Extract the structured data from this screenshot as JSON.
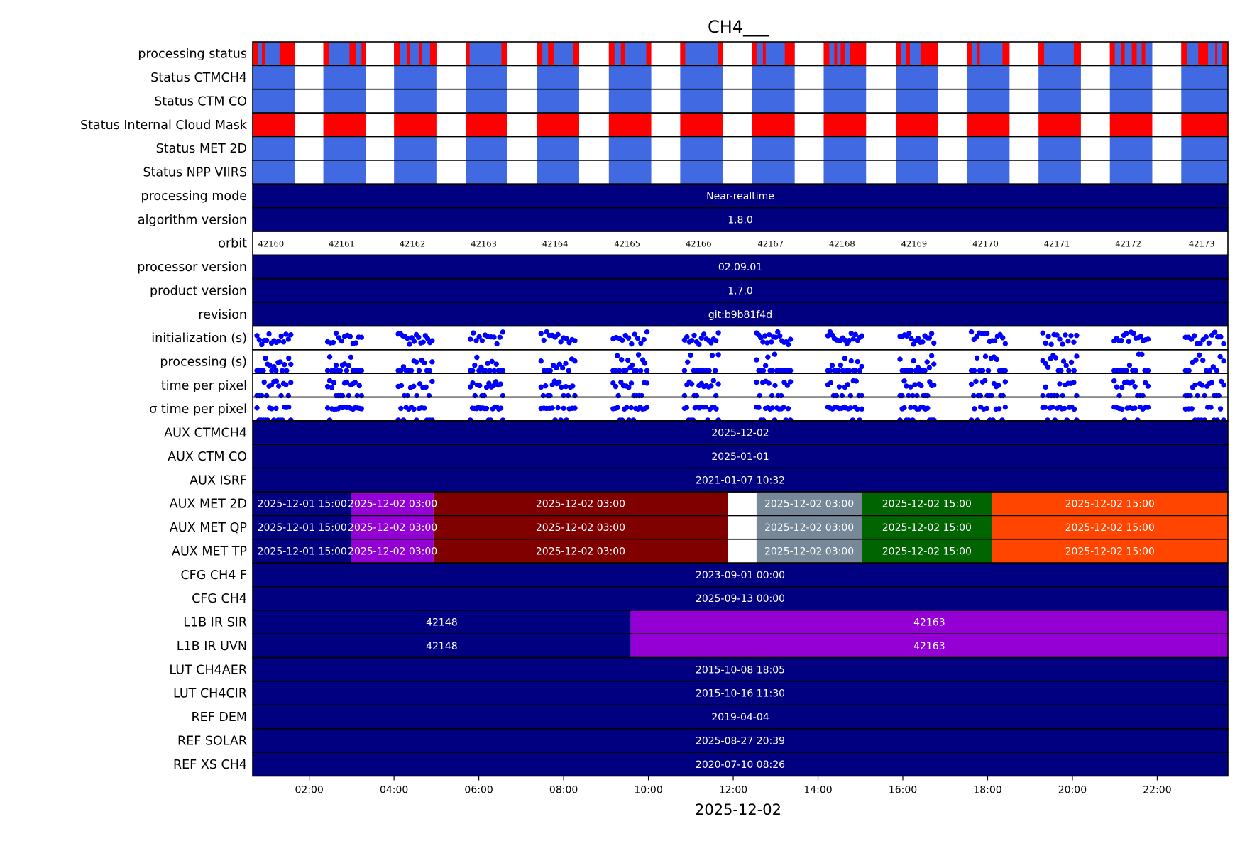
{
  "chart_data": {
    "type": "timeline",
    "title": "CH4___",
    "xlabel": "2025-12-02",
    "xlim": [
      "2025-12-02 00:40",
      "2025-12-02 23:40"
    ],
    "x_ticks": [
      "02:00",
      "04:00",
      "06:00",
      "08:00",
      "10:00",
      "12:00",
      "14:00",
      "16:00",
      "18:00",
      "20:00",
      "22:00"
    ],
    "colors": {
      "blue": "#4169e1",
      "red": "#ff0000",
      "navy": "#000080",
      "purple": "#9400d3",
      "maroon": "#800000",
      "gray": "#778899",
      "green": "#006400",
      "orange": "#ff4500",
      "white": "#ffffff",
      "dot": "#0000ff"
    },
    "orbit_windows": [
      [
        "00:40",
        "01:40"
      ],
      [
        "02:20",
        "03:20"
      ],
      [
        "04:00",
        "05:00"
      ],
      [
        "05:42",
        "06:40"
      ],
      [
        "07:22",
        "08:22"
      ],
      [
        "09:04",
        "10:04"
      ],
      [
        "10:45",
        "11:45"
      ],
      [
        "12:27",
        "13:27"
      ],
      [
        "14:08",
        "15:08"
      ],
      [
        "15:50",
        "16:50"
      ],
      [
        "17:31",
        "18:31"
      ],
      [
        "19:12",
        "20:12"
      ],
      [
        "20:53",
        "21:53"
      ],
      [
        "22:34",
        "23:40"
      ]
    ],
    "rows": [
      {
        "label": "processing status",
        "kind": "status_mixed",
        "failed_spans": [
          [
            "00:40",
            "00:48"
          ],
          [
            "00:53",
            "00:58"
          ],
          [
            "01:18",
            "01:40"
          ],
          [
            "02:20",
            "02:28"
          ],
          [
            "02:57",
            "03:06"
          ],
          [
            "03:14",
            "03:20"
          ],
          [
            "04:00",
            "04:08"
          ],
          [
            "04:18",
            "04:23"
          ],
          [
            "04:35",
            "04:40"
          ],
          [
            "04:51",
            "05:00"
          ],
          [
            "05:42",
            "05:47"
          ],
          [
            "06:32",
            "06:40"
          ],
          [
            "07:22",
            "07:30"
          ],
          [
            "07:38",
            "07:46"
          ],
          [
            "08:13",
            "08:22"
          ],
          [
            "09:04",
            "09:12"
          ],
          [
            "09:21",
            "09:27"
          ],
          [
            "09:57",
            "10:04"
          ],
          [
            "10:45",
            "10:52"
          ],
          [
            "11:38",
            "11:45"
          ],
          [
            "12:27",
            "12:33"
          ],
          [
            "12:42",
            "12:46"
          ],
          [
            "13:13",
            "13:27"
          ],
          [
            "14:08",
            "14:16"
          ],
          [
            "14:23",
            "14:27"
          ],
          [
            "14:32",
            "14:38"
          ],
          [
            "14:45",
            "15:08"
          ],
          [
            "15:50",
            "15:58"
          ],
          [
            "16:05",
            "16:10"
          ],
          [
            "16:25",
            "16:50"
          ],
          [
            "17:31",
            "17:38"
          ],
          [
            "17:45",
            "17:49"
          ],
          [
            "18:21",
            "18:31"
          ],
          [
            "19:12",
            "19:20"
          ],
          [
            "20:02",
            "20:12"
          ],
          [
            "20:53",
            "21:00"
          ],
          [
            "21:09",
            "21:14"
          ],
          [
            "21:24",
            "21:31"
          ],
          [
            "21:38",
            "21:43"
          ],
          [
            "22:34",
            "22:42"
          ],
          [
            "22:58",
            "23:12"
          ],
          [
            "23:22",
            "23:25"
          ],
          [
            "23:31",
            "23:40"
          ]
        ]
      },
      {
        "label": "Status CTMCH4",
        "kind": "status",
        "color": "blue"
      },
      {
        "label": "Status CTM CO",
        "kind": "status",
        "color": "blue"
      },
      {
        "label": "Status Internal Cloud Mask",
        "kind": "status",
        "color": "red"
      },
      {
        "label": "Status MET 2D",
        "kind": "status",
        "color": "blue"
      },
      {
        "label": "Status NPP VIIRS",
        "kind": "status",
        "color": "blue"
      },
      {
        "label": "processing mode",
        "kind": "full",
        "value": "Near-realtime"
      },
      {
        "label": "algorithm version",
        "kind": "full",
        "value": "1.8.0"
      },
      {
        "label": "orbit",
        "kind": "orbits",
        "values": [
          "42160",
          "42161",
          "42162",
          "42163",
          "42164",
          "42165",
          "42166",
          "42167",
          "42168",
          "42169",
          "42170",
          "42171",
          "42172",
          "42173"
        ]
      },
      {
        "label": "processor version",
        "kind": "full",
        "value": "02.09.01"
      },
      {
        "label": "product version",
        "kind": "full",
        "value": "1.7.0"
      },
      {
        "label": "revision",
        "kind": "full",
        "value": "git:b9b81f4d"
      },
      {
        "label": "initialization (s)",
        "kind": "scatter"
      },
      {
        "label": "processing (s)",
        "kind": "scatter"
      },
      {
        "label": "time per pixel",
        "kind": "scatter"
      },
      {
        "label": "σ time per pixel",
        "kind": "scatter"
      },
      {
        "label": "AUX CTMCH4",
        "kind": "full",
        "value": "2025-12-02"
      },
      {
        "label": "AUX CTM CO",
        "kind": "full",
        "value": "2025-01-01"
      },
      {
        "label": "AUX ISRF",
        "kind": "full",
        "value": "2021-01-07 10:32"
      },
      {
        "label": "AUX MET 2D",
        "kind": "segments",
        "segments": [
          {
            "start": "00:40",
            "end": "03:00",
            "color": "navy",
            "text": "2025-12-01 15:00"
          },
          {
            "start": "03:00",
            "end": "04:56",
            "color": "purple",
            "text": "2025-12-02 03:00"
          },
          {
            "start": "04:56",
            "end": "11:52",
            "color": "maroon",
            "text": "2025-12-02 03:00"
          },
          {
            "start": "12:33",
            "end": "15:02",
            "color": "gray",
            "text": "2025-12-02 03:00"
          },
          {
            "start": "15:02",
            "end": "18:06",
            "color": "green",
            "text": "2025-12-02 15:00"
          },
          {
            "start": "18:06",
            "end": "23:40",
            "color": "orange",
            "text": "2025-12-02 15:00"
          }
        ]
      },
      {
        "label": "AUX MET QP",
        "kind": "segments",
        "segments": [
          {
            "start": "00:40",
            "end": "03:00",
            "color": "navy",
            "text": "2025-12-01 15:00"
          },
          {
            "start": "03:00",
            "end": "04:56",
            "color": "purple",
            "text": "2025-12-02 03:00"
          },
          {
            "start": "04:56",
            "end": "11:52",
            "color": "maroon",
            "text": "2025-12-02 03:00"
          },
          {
            "start": "12:33",
            "end": "15:02",
            "color": "gray",
            "text": "2025-12-02 03:00"
          },
          {
            "start": "15:02",
            "end": "18:06",
            "color": "green",
            "text": "2025-12-02 15:00"
          },
          {
            "start": "18:06",
            "end": "23:40",
            "color": "orange",
            "text": "2025-12-02 15:00"
          }
        ]
      },
      {
        "label": "AUX MET TP",
        "kind": "segments",
        "segments": [
          {
            "start": "00:40",
            "end": "03:00",
            "color": "navy",
            "text": "2025-12-01 15:00"
          },
          {
            "start": "03:00",
            "end": "04:56",
            "color": "purple",
            "text": "2025-12-02 03:00"
          },
          {
            "start": "04:56",
            "end": "11:52",
            "color": "maroon",
            "text": "2025-12-02 03:00"
          },
          {
            "start": "12:33",
            "end": "15:02",
            "color": "gray",
            "text": "2025-12-02 03:00"
          },
          {
            "start": "15:02",
            "end": "18:06",
            "color": "green",
            "text": "2025-12-02 15:00"
          },
          {
            "start": "18:06",
            "end": "23:40",
            "color": "orange",
            "text": "2025-12-02 15:00"
          }
        ]
      },
      {
        "label": "CFG CH4  F",
        "kind": "full",
        "value": "2023-09-01 00:00"
      },
      {
        "label": "CFG CH4",
        "kind": "full",
        "value": "2025-09-13 00:00"
      },
      {
        "label": "L1B IR SIR",
        "kind": "segments",
        "segments": [
          {
            "start": "00:40",
            "end": "09:35",
            "color": "navy",
            "text": "42148"
          },
          {
            "start": "09:35",
            "end": "23:40",
            "color": "purple",
            "text": "42163"
          }
        ]
      },
      {
        "label": "L1B IR UVN",
        "kind": "segments",
        "segments": [
          {
            "start": "00:40",
            "end": "09:35",
            "color": "navy",
            "text": "42148"
          },
          {
            "start": "09:35",
            "end": "23:40",
            "color": "purple",
            "text": "42163"
          }
        ]
      },
      {
        "label": "LUT CH4AER",
        "kind": "full",
        "value": "2015-10-08 18:05"
      },
      {
        "label": "LUT CH4CIR",
        "kind": "full",
        "value": "2015-10-16 11:30"
      },
      {
        "label": "REF DEM",
        "kind": "full",
        "value": "2019-04-04"
      },
      {
        "label": "REF SOLAR",
        "kind": "full",
        "value": "2025-08-27 20:39"
      },
      {
        "label": "REF XS CH4",
        "kind": "full",
        "value": "2020-07-10 08:26"
      }
    ]
  }
}
